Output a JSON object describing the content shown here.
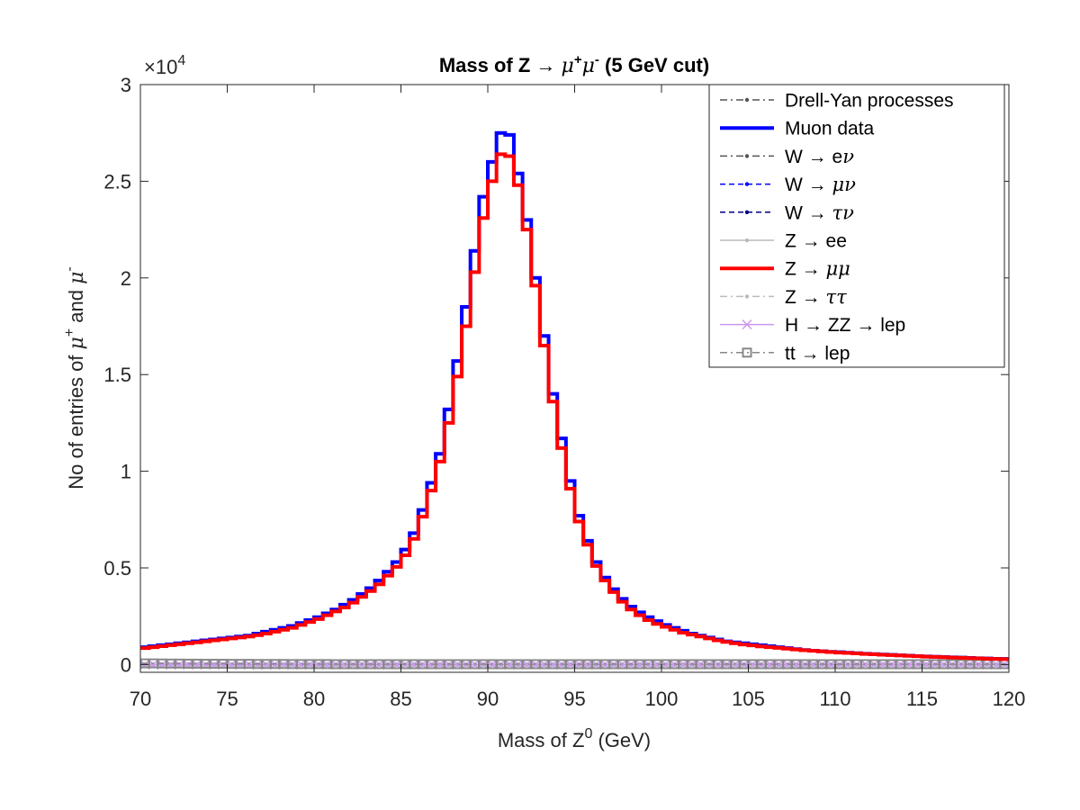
{
  "chart_data": {
    "type": "line",
    "title_parts": [
      "Mass of Z ",
      "→ ",
      "μ",
      "+",
      "μ",
      "-",
      " (5 GeV cut)"
    ],
    "xlabel_parts": [
      "Mass of Z",
      "0",
      " (GeV)"
    ],
    "ylabel_parts": [
      "No of entries of ",
      "μ",
      "+",
      " and ",
      "μ",
      "-"
    ],
    "xlim": [
      70,
      120
    ],
    "ylim": [
      -400,
      30000
    ],
    "x_ticks": [
      70,
      75,
      80,
      85,
      90,
      95,
      100,
      105,
      110,
      115,
      120
    ],
    "x_tick_labels": [
      "70",
      "75",
      "80",
      "85",
      "90",
      "95",
      "100",
      "105",
      "110",
      "115",
      "120"
    ],
    "y_ticks": [
      0,
      5000,
      10000,
      15000,
      20000,
      25000,
      30000
    ],
    "y_tick_labels": [
      "0",
      "0.5",
      "1",
      "1.5",
      "2",
      "2.5",
      "3"
    ],
    "y_multiplier_parts": [
      "×10",
      "4"
    ],
    "grid": false,
    "legend_position": "top-right",
    "bin_edges": [
      70.0,
      70.5,
      71.0,
      71.5,
      72.0,
      72.5,
      73.0,
      73.5,
      74.0,
      74.5,
      75.0,
      75.5,
      76.0,
      76.5,
      77.0,
      77.5,
      78.0,
      78.5,
      79.0,
      79.5,
      80.0,
      80.5,
      81.0,
      81.5,
      82.0,
      82.5,
      83.0,
      83.5,
      84.0,
      84.5,
      85.0,
      85.5,
      86.0,
      86.5,
      87.0,
      87.5,
      88.0,
      88.5,
      89.0,
      89.5,
      90.0,
      90.5,
      91.0,
      91.5,
      92.0,
      92.5,
      93.0,
      93.5,
      94.0,
      94.5,
      95.0,
      95.5,
      96.0,
      96.5,
      97.0,
      97.5,
      98.0,
      98.5,
      99.0,
      99.5,
      100.0,
      100.5,
      101.0,
      101.5,
      102.0,
      102.5,
      103.0,
      103.5,
      104.0,
      104.5,
      105.0,
      105.5,
      106.0,
      106.5,
      107.0,
      107.5,
      108.0,
      108.5,
      109.0,
      109.5,
      110.0,
      110.5,
      111.0,
      111.5,
      112.0,
      112.5,
      113.0,
      113.5,
      114.0,
      114.5,
      115.0,
      115.5,
      116.0,
      116.5,
      117.0,
      117.5,
      118.0,
      118.5,
      119.0,
      119.5,
      120.0
    ],
    "series": [
      {
        "name": "Drell-Yan processes",
        "legend_parts": [
          "Drell-Yan processes"
        ],
        "color": "#555555",
        "style": "dashdot-dot",
        "values": [
          0,
          0,
          0,
          0,
          0,
          0,
          0,
          0,
          0,
          0,
          0,
          0,
          0,
          0,
          0,
          0,
          0,
          0,
          0,
          0,
          0,
          0,
          0,
          0,
          0,
          0,
          0,
          0,
          0,
          0,
          0,
          0,
          0,
          0,
          0,
          0,
          0,
          0,
          0,
          0,
          0,
          0,
          0,
          0,
          0,
          0,
          0,
          0,
          0,
          0,
          0,
          0,
          0,
          0,
          0,
          0,
          0,
          0,
          0,
          0,
          0,
          0,
          0,
          0,
          0,
          0,
          0,
          0,
          0,
          0,
          0,
          0,
          0,
          0,
          0,
          0,
          0,
          0,
          0,
          0,
          0,
          0,
          0,
          0,
          0,
          0,
          0,
          0,
          0,
          0,
          0,
          0,
          0,
          0,
          0,
          0,
          0,
          0,
          0,
          0
        ]
      },
      {
        "name": "Muon data",
        "legend_parts": [
          "Muon data"
        ],
        "color": "#0000ff",
        "style": "solid-thick",
        "values": [
          900,
          950,
          1000,
          1050,
          1100,
          1150,
          1200,
          1250,
          1300,
          1350,
          1400,
          1450,
          1500,
          1600,
          1700,
          1800,
          1900,
          2000,
          2150,
          2300,
          2450,
          2650,
          2850,
          3100,
          3350,
          3650,
          3950,
          4350,
          4800,
          5300,
          5950,
          6800,
          8000,
          9400,
          10900,
          13200,
          15700,
          18500,
          21400,
          24200,
          26000,
          27500,
          27400,
          25400,
          23000,
          20000,
          17000,
          14000,
          11700,
          9500,
          7700,
          6400,
          5300,
          4500,
          3900,
          3400,
          3000,
          2700,
          2450,
          2250,
          2050,
          1900,
          1750,
          1600,
          1500,
          1400,
          1300,
          1200,
          1150,
          1100,
          1050,
          1000,
          950,
          900,
          850,
          800,
          750,
          720,
          690,
          660,
          640,
          610,
          590,
          560,
          540,
          520,
          500,
          480,
          460,
          440,
          420,
          405,
          390,
          375,
          360,
          345,
          330,
          315,
          300,
          290
        ]
      },
      {
        "name": "W → eν",
        "legend_parts": [
          "W ",
          "→ ",
          "e",
          "ν"
        ],
        "color": "#555555",
        "style": "dashdot-dot",
        "values": [
          0,
          0,
          0,
          0,
          0,
          0,
          0,
          0,
          0,
          0,
          0,
          0,
          0,
          0,
          0,
          0,
          0,
          0,
          0,
          0,
          0,
          0,
          0,
          0,
          0,
          0,
          0,
          0,
          0,
          0,
          0,
          0,
          0,
          0,
          0,
          0,
          0,
          0,
          0,
          0,
          0,
          0,
          0,
          0,
          0,
          0,
          0,
          0,
          0,
          0,
          0,
          0,
          0,
          0,
          0,
          0,
          0,
          0,
          0,
          0,
          0,
          0,
          0,
          0,
          0,
          0,
          0,
          0,
          0,
          0,
          0,
          0,
          0,
          0,
          0,
          0,
          0,
          0,
          0,
          0,
          0,
          0,
          0,
          0,
          0,
          0,
          0,
          0,
          0,
          0,
          0,
          0,
          0,
          0,
          0,
          0,
          0,
          0,
          0,
          0
        ]
      },
      {
        "name": "W → μν",
        "legend_parts": [
          "W ",
          "→ ",
          "",
          "μν"
        ],
        "color": "#0000ff",
        "style": "dashed-dot",
        "values": [
          0,
          0,
          0,
          0,
          0,
          0,
          0,
          0,
          0,
          0,
          0,
          0,
          0,
          0,
          0,
          0,
          0,
          0,
          0,
          0,
          0,
          0,
          0,
          0,
          0,
          0,
          0,
          0,
          0,
          0,
          0,
          0,
          0,
          0,
          0,
          0,
          0,
          0,
          0,
          0,
          0,
          0,
          0,
          0,
          0,
          0,
          0,
          0,
          0,
          0,
          0,
          0,
          0,
          0,
          0,
          0,
          0,
          0,
          0,
          0,
          0,
          0,
          0,
          0,
          0,
          0,
          0,
          0,
          0,
          0,
          0,
          0,
          0,
          0,
          0,
          0,
          0,
          0,
          0,
          0,
          0,
          0,
          0,
          0,
          0,
          0,
          0,
          0,
          0,
          0,
          0,
          0,
          0,
          0,
          0,
          0,
          0,
          0,
          0,
          0
        ]
      },
      {
        "name": "W → τν",
        "legend_parts": [
          "W ",
          "→ ",
          "",
          "τν"
        ],
        "color": "#000080",
        "style": "dashed-dot",
        "values": [
          0,
          0,
          0,
          0,
          0,
          0,
          0,
          0,
          0,
          0,
          0,
          0,
          0,
          0,
          0,
          0,
          0,
          0,
          0,
          0,
          0,
          0,
          0,
          0,
          0,
          0,
          0,
          0,
          0,
          0,
          0,
          0,
          0,
          0,
          0,
          0,
          0,
          0,
          0,
          0,
          0,
          0,
          0,
          0,
          0,
          0,
          0,
          0,
          0,
          0,
          0,
          0,
          0,
          0,
          0,
          0,
          0,
          0,
          0,
          0,
          0,
          0,
          0,
          0,
          0,
          0,
          0,
          0,
          0,
          0,
          0,
          0,
          0,
          0,
          0,
          0,
          0,
          0,
          0,
          0,
          0,
          0,
          0,
          0,
          0,
          0,
          0,
          0,
          0,
          0,
          0,
          0,
          0,
          0,
          0,
          0,
          0,
          0,
          0,
          0
        ]
      },
      {
        "name": "Z → ee",
        "legend_parts": [
          "Z ",
          "→ ",
          "ee",
          ""
        ],
        "color": "#bbbbbb",
        "style": "solid-dot",
        "values": [
          0,
          0,
          0,
          0,
          0,
          0,
          0,
          0,
          0,
          0,
          0,
          0,
          0,
          0,
          0,
          0,
          0,
          0,
          0,
          0,
          0,
          0,
          0,
          0,
          0,
          0,
          0,
          0,
          0,
          0,
          0,
          0,
          0,
          0,
          0,
          0,
          0,
          0,
          0,
          0,
          0,
          0,
          0,
          0,
          0,
          0,
          0,
          0,
          0,
          0,
          0,
          0,
          0,
          0,
          0,
          0,
          0,
          0,
          0,
          0,
          0,
          0,
          0,
          0,
          0,
          0,
          0,
          0,
          0,
          0,
          0,
          0,
          0,
          0,
          0,
          0,
          0,
          0,
          0,
          0,
          0,
          0,
          0,
          0,
          0,
          0,
          0,
          0,
          0,
          0,
          0,
          0,
          0,
          0,
          0,
          0,
          0,
          0,
          0,
          0
        ]
      },
      {
        "name": "Z → μμ",
        "legend_parts": [
          "Z ",
          "→ ",
          "",
          "μμ"
        ],
        "color": "#ff0000",
        "style": "solid-thick",
        "values": [
          850,
          900,
          950,
          1000,
          1050,
          1100,
          1150,
          1200,
          1250,
          1300,
          1350,
          1400,
          1450,
          1520,
          1600,
          1700,
          1800,
          1900,
          2050,
          2200,
          2350,
          2550,
          2750,
          2950,
          3200,
          3500,
          3800,
          4150,
          4600,
          5050,
          5650,
          6500,
          7650,
          9000,
          10500,
          12500,
          14900,
          17500,
          20300,
          23100,
          25000,
          26400,
          26300,
          24800,
          22500,
          19600,
          16500,
          13600,
          11200,
          9100,
          7400,
          6200,
          5100,
          4350,
          3750,
          3250,
          2850,
          2550,
          2300,
          2100,
          1950,
          1800,
          1650,
          1550,
          1450,
          1350,
          1250,
          1170,
          1100,
          1040,
          990,
          940,
          900,
          860,
          820,
          780,
          740,
          710,
          680,
          650,
          620,
          600,
          580,
          550,
          530,
          510,
          490,
          470,
          450,
          430,
          410,
          395,
          380,
          365,
          350,
          335,
          320,
          305,
          290,
          280
        ]
      },
      {
        "name": "Z → ττ",
        "legend_parts": [
          "Z ",
          "→ ",
          "",
          "ττ"
        ],
        "color": "#bbbbbb",
        "style": "dashdot-dot",
        "values": [
          0,
          0,
          0,
          0,
          0,
          0,
          0,
          0,
          0,
          0,
          0,
          0,
          0,
          0,
          0,
          0,
          0,
          0,
          0,
          0,
          0,
          0,
          0,
          0,
          0,
          0,
          0,
          0,
          0,
          0,
          0,
          0,
          0,
          0,
          0,
          0,
          0,
          0,
          0,
          0,
          0,
          0,
          0,
          0,
          0,
          0,
          0,
          0,
          0,
          0,
          0,
          0,
          0,
          0,
          0,
          0,
          0,
          0,
          0,
          0,
          0,
          0,
          0,
          0,
          0,
          0,
          0,
          0,
          0,
          0,
          0,
          0,
          0,
          0,
          0,
          0,
          0,
          0,
          0,
          0,
          0,
          0,
          0,
          0,
          0,
          0,
          0,
          0,
          0,
          0,
          0,
          0,
          0,
          0,
          0,
          0,
          0,
          0,
          0,
          0
        ]
      },
      {
        "name": "H → ZZ → lep",
        "legend_parts": [
          "H ",
          "→ ",
          "ZZ ",
          "→ ",
          "lep"
        ],
        "color": "#cc99ee",
        "style": "solid-x",
        "values": [
          0,
          0,
          0,
          0,
          0,
          0,
          0,
          0,
          0,
          0,
          0,
          0,
          0,
          0,
          0,
          0,
          0,
          0,
          0,
          0,
          0,
          0,
          0,
          0,
          0,
          0,
          0,
          0,
          0,
          0,
          0,
          0,
          0,
          0,
          0,
          0,
          0,
          0,
          0,
          0,
          0,
          0,
          0,
          0,
          0,
          0,
          0,
          0,
          0,
          0,
          0,
          0,
          0,
          0,
          0,
          0,
          0,
          0,
          0,
          0,
          0,
          0,
          0,
          0,
          0,
          0,
          0,
          0,
          0,
          0,
          0,
          0,
          0,
          0,
          0,
          0,
          0,
          0,
          0,
          0,
          0,
          0,
          0,
          0,
          0,
          0,
          0,
          0,
          0,
          0,
          0,
          0,
          0,
          0,
          0,
          0,
          0,
          0,
          0,
          0
        ]
      },
      {
        "name": "tt → lep",
        "legend_parts": [
          "tt ",
          "→ ",
          "lep"
        ],
        "color": "#888888",
        "style": "dashdot-square",
        "values": [
          60,
          60,
          55,
          50,
          50,
          45,
          45,
          40,
          40,
          40,
          35,
          35,
          35,
          30,
          30,
          30,
          30,
          25,
          25,
          25,
          25,
          25,
          20,
          20,
          20,
          20,
          20,
          20,
          20,
          20,
          20,
          20,
          20,
          20,
          20,
          20,
          20,
          20,
          20,
          20,
          20,
          20,
          20,
          20,
          20,
          20,
          20,
          20,
          20,
          20,
          20,
          20,
          20,
          20,
          20,
          20,
          20,
          20,
          20,
          20,
          20,
          20,
          20,
          20,
          20,
          20,
          20,
          20,
          20,
          20,
          20,
          20,
          20,
          20,
          20,
          20,
          20,
          20,
          20,
          20,
          20,
          20,
          20,
          20,
          20,
          20,
          20,
          20,
          20,
          20,
          20,
          20,
          20,
          20,
          20,
          20,
          20,
          20,
          20,
          20
        ]
      }
    ]
  }
}
